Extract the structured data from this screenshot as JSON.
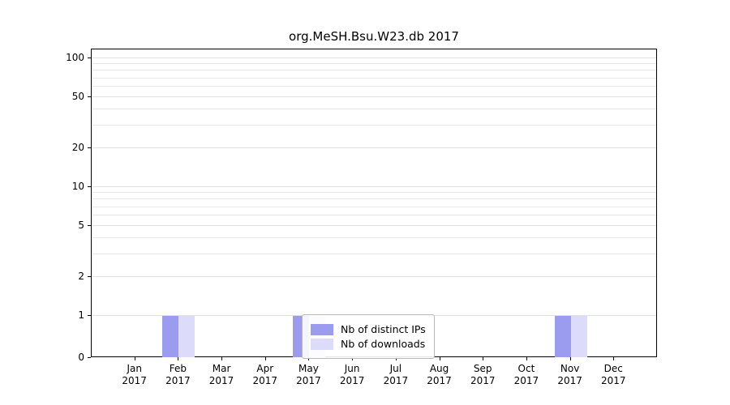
{
  "chart_data": {
    "type": "bar",
    "title": "org.MeSH.Bsu.W23.db 2017",
    "year": "2017",
    "categories": [
      "Jan",
      "Feb",
      "Mar",
      "Apr",
      "May",
      "Jun",
      "Jul",
      "Aug",
      "Sep",
      "Oct",
      "Nov",
      "Dec"
    ],
    "series": [
      {
        "name": "Nb of distinct IPs",
        "color": "#9b9bf0",
        "values": [
          0,
          1,
          0,
          0,
          1,
          0,
          0,
          0,
          0,
          0,
          1,
          0
        ]
      },
      {
        "name": "Nb of downloads",
        "color": "#dcdcfa",
        "values": [
          0,
          1,
          0,
          0,
          1,
          0,
          0,
          0,
          0,
          0,
          1,
          0
        ]
      }
    ],
    "yscale": "symlog",
    "y_ticks": [
      0,
      1,
      2,
      5,
      10,
      20,
      50,
      100
    ],
    "y_minor_ticks": [
      3,
      4,
      6,
      7,
      8,
      9,
      30,
      40,
      60,
      70,
      80,
      90
    ],
    "ylim": [
      0,
      117
    ],
    "grid": "horizontal",
    "legend_position": "lower-center-inside"
  }
}
